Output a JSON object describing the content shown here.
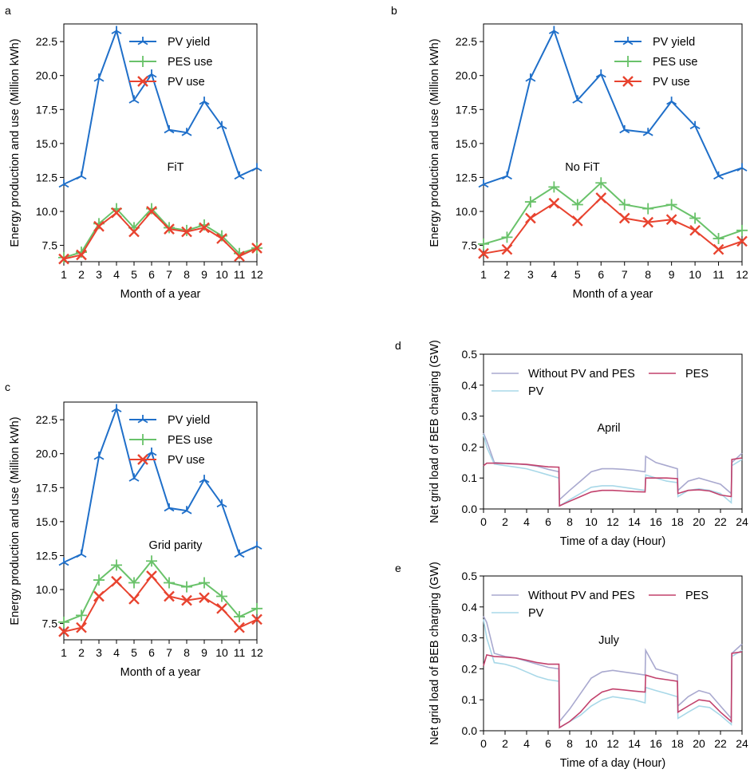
{
  "chart_data": [
    {
      "panel_label": "a",
      "type": "line",
      "annotation": "FiT",
      "xlabel": "Month of a year",
      "ylabel": "Energy production and use (Million kWh)",
      "x": [
        1,
        2,
        3,
        4,
        5,
        6,
        7,
        8,
        9,
        10,
        11,
        12
      ],
      "xticks": [
        "1",
        "2",
        "3",
        "4",
        "5",
        "6",
        "7",
        "8",
        "9",
        "10",
        "11",
        "12"
      ],
      "yticks": [
        "7.5",
        "10.0",
        "12.5",
        "15.0",
        "17.5",
        "20.0",
        "22.5"
      ],
      "xlim": [
        1,
        12
      ],
      "ylim": [
        6.3,
        23.8
      ],
      "legend_position": "upper-right",
      "series": [
        {
          "name": "PV yield",
          "color": "#1f6fc9",
          "marker": "tri",
          "values": [
            12.0,
            12.6,
            19.8,
            23.3,
            18.2,
            20.1,
            16.0,
            15.8,
            18.1,
            16.3,
            12.6,
            13.2
          ]
        },
        {
          "name": "PES use",
          "color": "#69c26a",
          "marker": "plus",
          "values": [
            6.6,
            7.0,
            9.1,
            10.2,
            8.8,
            10.2,
            8.8,
            8.6,
            9.0,
            8.2,
            6.9,
            7.3
          ]
        },
        {
          "name": "PV use",
          "color": "#e8432f",
          "marker": "x",
          "values": [
            6.5,
            6.8,
            8.9,
            9.9,
            8.5,
            10.0,
            8.7,
            8.5,
            8.8,
            8.0,
            6.7,
            7.3
          ]
        }
      ]
    },
    {
      "panel_label": "b",
      "type": "line",
      "annotation": "No FiT",
      "xlabel": "Month of a year",
      "ylabel": "Energy production and use (Million kWh)",
      "x": [
        1,
        2,
        3,
        4,
        5,
        6,
        7,
        8,
        9,
        10,
        11,
        12
      ],
      "xticks": [
        "1",
        "2",
        "3",
        "4",
        "5",
        "6",
        "7",
        "8",
        "9",
        "10",
        "11",
        "12"
      ],
      "yticks": [
        "7.5",
        "10.0",
        "12.5",
        "15.0",
        "17.5",
        "20.0",
        "22.5"
      ],
      "xlim": [
        1,
        12
      ],
      "ylim": [
        6.3,
        23.8
      ],
      "legend_position": "upper-right",
      "series": [
        {
          "name": "PV yield",
          "color": "#1f6fc9",
          "marker": "tri",
          "values": [
            12.0,
            12.6,
            19.8,
            23.3,
            18.2,
            20.1,
            16.0,
            15.8,
            18.1,
            16.3,
            12.6,
            13.2
          ]
        },
        {
          "name": "PES use",
          "color": "#69c26a",
          "marker": "plus",
          "values": [
            7.6,
            8.1,
            10.7,
            11.8,
            10.5,
            12.1,
            10.5,
            10.2,
            10.5,
            9.5,
            8.0,
            8.6
          ]
        },
        {
          "name": "PV use",
          "color": "#e8432f",
          "marker": "x",
          "values": [
            6.9,
            7.2,
            9.5,
            10.6,
            9.3,
            11.0,
            9.5,
            9.2,
            9.4,
            8.6,
            7.2,
            7.8
          ]
        }
      ]
    },
    {
      "panel_label": "c",
      "type": "line",
      "annotation": "Grid parity",
      "xlabel": "Month of a year",
      "ylabel": "Energy production and use (Million kWh)",
      "x": [
        1,
        2,
        3,
        4,
        5,
        6,
        7,
        8,
        9,
        10,
        11,
        12
      ],
      "xticks": [
        "1",
        "2",
        "3",
        "4",
        "5",
        "6",
        "7",
        "8",
        "9",
        "10",
        "11",
        "12"
      ],
      "yticks": [
        "7.5",
        "10.0",
        "12.5",
        "15.0",
        "17.5",
        "20.0",
        "22.5"
      ],
      "xlim": [
        1,
        12
      ],
      "ylim": [
        6.3,
        23.8
      ],
      "legend_position": "upper-right",
      "series": [
        {
          "name": "PV yield",
          "color": "#1f6fc9",
          "marker": "tri",
          "values": [
            12.0,
            12.6,
            19.8,
            23.3,
            18.2,
            20.1,
            16.0,
            15.8,
            18.1,
            16.3,
            12.6,
            13.2
          ]
        },
        {
          "name": "PES use",
          "color": "#69c26a",
          "marker": "plus",
          "values": [
            7.6,
            8.1,
            10.7,
            11.8,
            10.5,
            12.1,
            10.5,
            10.2,
            10.5,
            9.5,
            8.0,
            8.6
          ]
        },
        {
          "name": "PV use",
          "color": "#e8432f",
          "marker": "x",
          "values": [
            6.9,
            7.2,
            9.5,
            10.6,
            9.3,
            11.0,
            9.5,
            9.2,
            9.4,
            8.6,
            7.2,
            7.8
          ]
        }
      ]
    },
    {
      "panel_label": "d",
      "type": "line",
      "annotation": "April",
      "xlabel": "Time of a day (Hour)",
      "ylabel": "Net grid load of BEB charging (GW)",
      "xticks": [
        "0",
        "2",
        "4",
        "6",
        "8",
        "10",
        "12",
        "14",
        "16",
        "18",
        "20",
        "22",
        "24"
      ],
      "yticks": [
        "0.0",
        "0.1",
        "0.2",
        "0.3",
        "0.4",
        "0.5"
      ],
      "xlim": [
        0,
        24
      ],
      "ylim": [
        0,
        0.5
      ],
      "legend_position": "top",
      "series": [
        {
          "name": "Without PV and PES",
          "color": "#a9a9cf",
          "x": [
            0,
            0.3,
            1,
            2,
            3,
            4,
            5,
            6,
            7,
            7.05,
            8,
            9,
            10,
            11,
            12,
            13,
            14,
            15,
            15.05,
            16,
            17,
            18,
            18.05,
            19,
            20,
            21,
            22,
            23,
            23.05,
            24
          ],
          "values": [
            0.245,
            0.22,
            0.15,
            0.148,
            0.146,
            0.143,
            0.138,
            0.128,
            0.12,
            0.03,
            0.06,
            0.09,
            0.12,
            0.13,
            0.13,
            0.128,
            0.125,
            0.12,
            0.17,
            0.15,
            0.14,
            0.13,
            0.06,
            0.09,
            0.1,
            0.09,
            0.08,
            0.05,
            0.15,
            0.18
          ]
        },
        {
          "name": "PV",
          "color": "#a8d8e8",
          "x": [
            0,
            0.3,
            1,
            2,
            3,
            4,
            5,
            6,
            7,
            7.05,
            8,
            9,
            10,
            11,
            12,
            13,
            14,
            15,
            15.05,
            16,
            17,
            18,
            18.05,
            19,
            20,
            21,
            22,
            23,
            23.05,
            24
          ],
          "values": [
            0.24,
            0.2,
            0.145,
            0.14,
            0.135,
            0.13,
            0.12,
            0.11,
            0.1,
            0.01,
            0.03,
            0.05,
            0.07,
            0.075,
            0.075,
            0.07,
            0.065,
            0.06,
            0.11,
            0.1,
            0.09,
            0.085,
            0.04,
            0.06,
            0.065,
            0.06,
            0.05,
            0.02,
            0.14,
            0.16
          ]
        },
        {
          "name": "PES",
          "color": "#c2416c",
          "x": [
            0,
            0.3,
            1,
            2,
            3,
            4,
            5,
            6,
            7,
            7.05,
            8,
            9,
            10,
            11,
            12,
            13,
            14,
            15,
            15.05,
            16,
            17,
            18,
            18.05,
            19,
            20,
            21,
            22,
            23,
            23.05,
            24
          ],
          "values": [
            0.14,
            0.148,
            0.148,
            0.147,
            0.146,
            0.144,
            0.14,
            0.136,
            0.135,
            0.01,
            0.025,
            0.04,
            0.055,
            0.06,
            0.06,
            0.058,
            0.056,
            0.055,
            0.1,
            0.1,
            0.1,
            0.098,
            0.05,
            0.06,
            0.062,
            0.058,
            0.045,
            0.04,
            0.16,
            0.165
          ]
        }
      ]
    },
    {
      "panel_label": "e",
      "type": "line",
      "annotation": "July",
      "xlabel": "Time of a day (Hour)",
      "ylabel": "Net grid load of BEB charging (GW)",
      "xticks": [
        "0",
        "2",
        "4",
        "6",
        "8",
        "10",
        "12",
        "14",
        "16",
        "18",
        "20",
        "22",
        "24"
      ],
      "yticks": [
        "0.0",
        "0.1",
        "0.2",
        "0.3",
        "0.4",
        "0.5"
      ],
      "xlim": [
        0,
        24
      ],
      "ylim": [
        0,
        0.5
      ],
      "legend_position": "top",
      "series": [
        {
          "name": "Without PV and PES",
          "color": "#a9a9cf",
          "x": [
            0,
            0.3,
            1,
            2,
            3,
            4,
            5,
            6,
            7,
            7.05,
            8,
            9,
            10,
            11,
            12,
            13,
            14,
            15,
            15.05,
            16,
            17,
            18,
            18.05,
            19,
            20,
            21,
            22,
            23,
            23.05,
            24
          ],
          "values": [
            0.37,
            0.35,
            0.25,
            0.24,
            0.235,
            0.225,
            0.215,
            0.205,
            0.2,
            0.03,
            0.07,
            0.12,
            0.17,
            0.19,
            0.195,
            0.19,
            0.185,
            0.18,
            0.26,
            0.2,
            0.19,
            0.18,
            0.08,
            0.11,
            0.13,
            0.12,
            0.08,
            0.04,
            0.25,
            0.28
          ]
        },
        {
          "name": "PV",
          "color": "#a8d8e8",
          "x": [
            0,
            0.3,
            1,
            2,
            3,
            4,
            5,
            6,
            7,
            7.05,
            8,
            9,
            10,
            11,
            12,
            13,
            14,
            15,
            15.05,
            16,
            17,
            18,
            18.05,
            19,
            20,
            21,
            22,
            23,
            23.05,
            24
          ],
          "values": [
            0.36,
            0.3,
            0.22,
            0.215,
            0.205,
            0.19,
            0.175,
            0.165,
            0.16,
            0.01,
            0.03,
            0.05,
            0.08,
            0.1,
            0.11,
            0.105,
            0.1,
            0.09,
            0.14,
            0.13,
            0.12,
            0.11,
            0.04,
            0.06,
            0.08,
            0.075,
            0.05,
            0.02,
            0.24,
            0.26
          ]
        },
        {
          "name": "PES",
          "color": "#c2416c",
          "x": [
            0,
            0.3,
            1,
            2,
            3,
            4,
            5,
            6,
            7,
            7.05,
            8,
            9,
            10,
            11,
            12,
            13,
            14,
            15,
            15.05,
            16,
            17,
            18,
            18.05,
            19,
            20,
            21,
            22,
            23,
            23.05,
            24
          ],
          "values": [
            0.21,
            0.245,
            0.24,
            0.238,
            0.235,
            0.228,
            0.22,
            0.215,
            0.215,
            0.01,
            0.03,
            0.06,
            0.1,
            0.125,
            0.135,
            0.132,
            0.128,
            0.125,
            0.18,
            0.17,
            0.165,
            0.16,
            0.06,
            0.08,
            0.1,
            0.095,
            0.06,
            0.03,
            0.25,
            0.255
          ]
        }
      ]
    }
  ]
}
